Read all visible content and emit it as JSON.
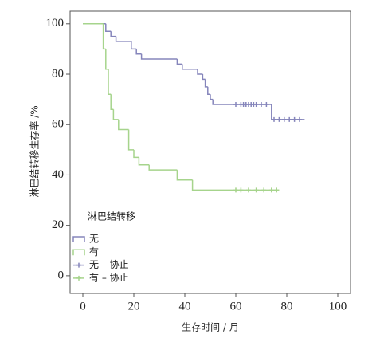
{
  "chart_data": {
    "type": "survival",
    "y_label": "淋巴结转移生存率 /%",
    "x_label": "生存时间 / 月",
    "legend_title": "淋巴结转移",
    "legend": "lower left",
    "xlim": [
      -5,
      105
    ],
    "ylim": [
      -7,
      105
    ],
    "xticks": [
      0,
      20,
      40,
      60,
      80,
      100
    ],
    "yticks": [
      0,
      20,
      40,
      60,
      80,
      100
    ],
    "series": [
      {
        "name": "无",
        "style": "step",
        "color": "#8585bb",
        "x": [
          0,
          9,
          11,
          13,
          19,
          21,
          23,
          37,
          39,
          45,
          47,
          48,
          49,
          50,
          51,
          74,
          87
        ],
        "values": [
          100,
          97,
          95,
          93,
          90,
          88,
          86,
          84,
          82,
          80,
          78,
          75,
          72,
          70,
          68,
          62,
          62
        ]
      },
      {
        "name": "有",
        "style": "step",
        "color": "#a6d48c",
        "x": [
          0,
          8,
          9,
          10,
          11,
          12,
          14,
          18,
          20,
          22,
          26,
          37,
          43,
          77
        ],
        "values": [
          100,
          90,
          82,
          72,
          66,
          62,
          58,
          50,
          47,
          44,
          42,
          38,
          34,
          34
        ]
      },
      {
        "name": "无 – 协止",
        "style": "censor",
        "color": "#8585bb",
        "x": [
          60,
          62,
          63,
          64,
          65,
          66,
          67,
          68,
          70,
          72,
          75,
          77,
          79,
          81,
          83,
          85
        ],
        "values": [
          68,
          68,
          68,
          68,
          68,
          68,
          68,
          68,
          68,
          68,
          62,
          62,
          62,
          62,
          62,
          62
        ]
      },
      {
        "name": "有 – 协止",
        "style": "censor",
        "color": "#a6d48c",
        "x": [
          60,
          62,
          65,
          68,
          71,
          74,
          76
        ],
        "values": [
          34,
          34,
          34,
          34,
          34,
          34,
          34
        ]
      }
    ]
  }
}
